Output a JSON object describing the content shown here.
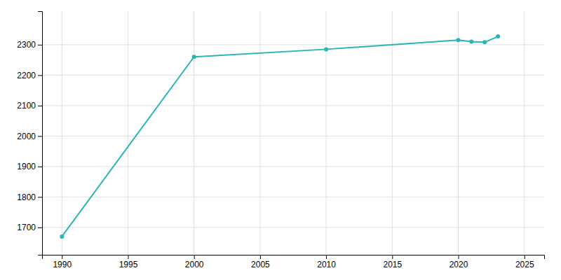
{
  "chart_data": {
    "type": "line",
    "x": [
      1990,
      2000,
      2010,
      2020,
      2021,
      2022,
      2023
    ],
    "values": [
      1670,
      2260,
      2285,
      2315,
      2310,
      2308,
      2327
    ],
    "color": "#2ab5b5",
    "marker": "circle",
    "xlim": [
      1988.5,
      2026.5
    ],
    "ylim": [
      1610,
      2410
    ],
    "xticks": [
      1990,
      1995,
      2000,
      2005,
      2010,
      2015,
      2020,
      2025
    ],
    "yticks": [
      1700,
      1800,
      1900,
      2000,
      2100,
      2200,
      2300
    ],
    "grid": true
  }
}
